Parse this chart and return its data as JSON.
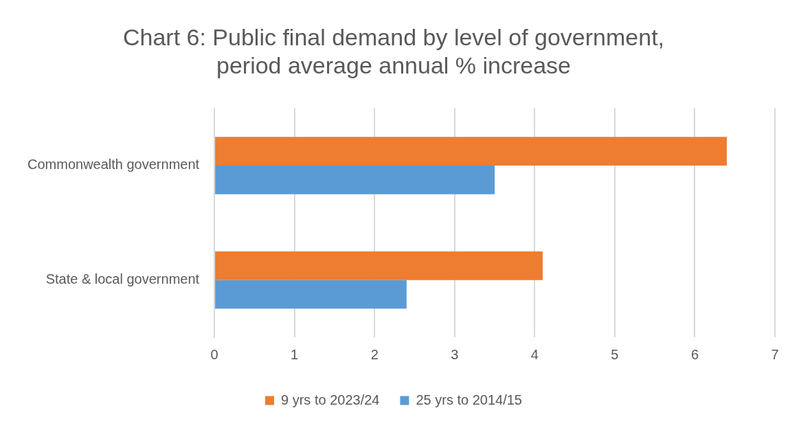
{
  "chart_data": {
    "type": "bar",
    "orientation": "horizontal",
    "title": "Chart 6: Public final demand by level of government, period average annual % increase",
    "categories": [
      "Commonwealth government",
      "State & local government"
    ],
    "series": [
      {
        "name": "9 yrs to 2023/24",
        "color": "#ed7d31",
        "values": [
          6.4,
          4.1
        ]
      },
      {
        "name": "25 yrs to 2014/15",
        "color": "#5b9bd5",
        "values": [
          3.5,
          2.4
        ]
      }
    ],
    "xlim": [
      0,
      7
    ],
    "xticks": [
      0,
      1,
      2,
      3,
      4,
      5,
      6,
      7
    ],
    "grid": "x",
    "legend": "bottom"
  }
}
